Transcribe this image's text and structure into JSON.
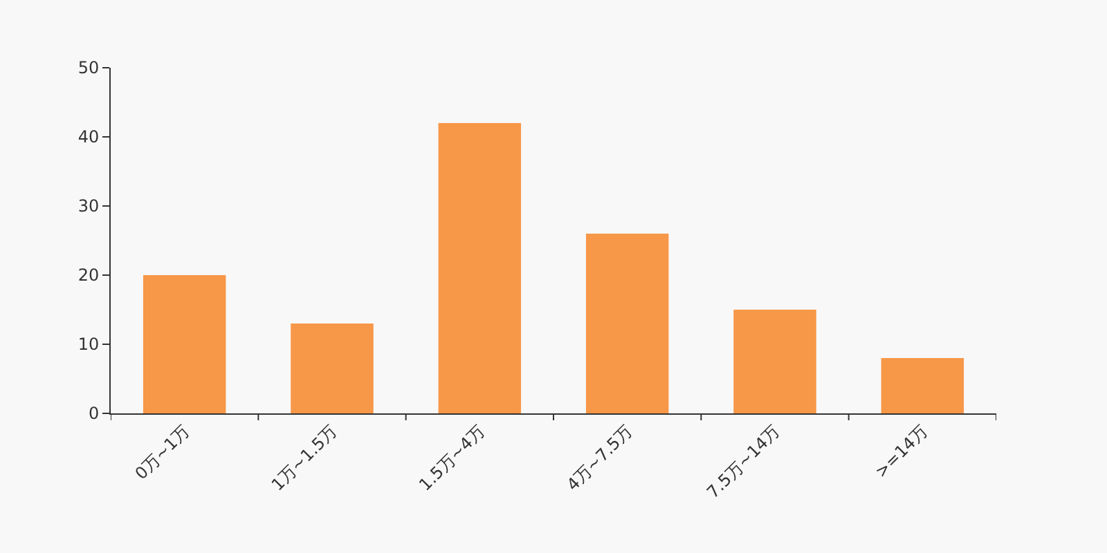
{
  "chart_data": {
    "type": "bar",
    "categories": [
      "0万~1万",
      "1万~1.5万",
      "1.5万~4万",
      "4万~7.5万",
      "7.5万~14万",
      ">=14万"
    ],
    "values": [
      20,
      13,
      42,
      26,
      15,
      8
    ],
    "color": "#f79748",
    "ylim": [
      0,
      50
    ],
    "yticks": [
      0,
      10,
      20,
      30,
      40,
      50
    ],
    "grid": false,
    "legend": false
  }
}
